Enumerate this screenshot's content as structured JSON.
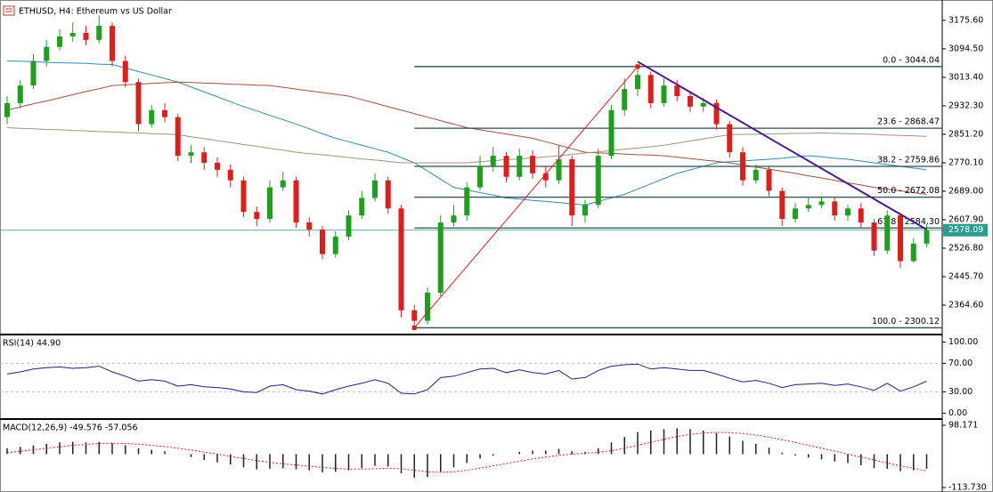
{
  "chart_data": [
    {
      "type": "candlestick",
      "title": "ETHUSD, H4:  Ethereum vs US Dollar",
      "open": [
        2900,
        2940,
        2990,
        3060,
        3100,
        3130,
        3140,
        3120,
        3160,
        3060,
        3000,
        2880,
        2920,
        2900,
        2790,
        2800,
        2770,
        2750,
        2720,
        2630,
        2610,
        2700,
        2720,
        2600,
        2580,
        2510,
        2560,
        2620,
        2670,
        2720,
        2640,
        2350,
        2320,
        2400,
        2600,
        2620,
        2700,
        2760,
        2790,
        2730,
        2790,
        2740,
        2720,
        2780,
        2620,
        2650,
        2790,
        2920,
        2980,
        3020,
        2940,
        2990,
        2960,
        2930,
        2940,
        2880,
        2800,
        2720,
        2750,
        2690,
        2610,
        2640,
        2650,
        2660,
        2620,
        2640,
        2600,
        2520,
        2620,
        2490,
        2540
      ],
      "high": [
        2960,
        3005,
        3080,
        3120,
        3150,
        3170,
        3160,
        3190,
        3170,
        3075,
        3010,
        2935,
        2940,
        2910,
        2820,
        2815,
        2785,
        2765,
        2730,
        2645,
        2720,
        2745,
        2730,
        2615,
        2590,
        2575,
        2635,
        2690,
        2740,
        2730,
        2650,
        2365,
        2415,
        2620,
        2650,
        2715,
        2790,
        2815,
        2800,
        2810,
        2805,
        2760,
        2820,
        2790,
        2665,
        2810,
        2935,
        3010,
        3044.04,
        3030,
        3010,
        3005,
        2975,
        2955,
        2950,
        2890,
        2815,
        2765,
        2760,
        2700,
        2655,
        2670,
        2675,
        2670,
        2650,
        2655,
        2610,
        2635,
        2625,
        2555,
        2595
      ],
      "low": [
        2880,
        2925,
        2980,
        3045,
        3090,
        3115,
        3105,
        3110,
        3045,
        2985,
        2860,
        2870,
        2885,
        2775,
        2770,
        2750,
        2730,
        2700,
        2615,
        2590,
        2600,
        2690,
        2585,
        2560,
        2495,
        2500,
        2550,
        2610,
        2660,
        2625,
        2330,
        2300.12,
        2310,
        2390,
        2590,
        2605,
        2690,
        2745,
        2715,
        2720,
        2725,
        2700,
        2710,
        2590,
        2600,
        2640,
        2780,
        2905,
        2960,
        2925,
        2930,
        2945,
        2915,
        2915,
        2865,
        2785,
        2705,
        2710,
        2675,
        2590,
        2600,
        2630,
        2640,
        2605,
        2605,
        2585,
        2505,
        2510,
        2470,
        2485,
        2530
      ],
      "close": [
        2940,
        2990,
        3060,
        3100,
        3130,
        3140,
        3120,
        3160,
        3060,
        3000,
        2880,
        2920,
        2900,
        2790,
        2800,
        2770,
        2750,
        2720,
        2630,
        2610,
        2700,
        2720,
        2600,
        2580,
        2510,
        2560,
        2620,
        2670,
        2720,
        2640,
        2350,
        2320,
        2400,
        2600,
        2620,
        2700,
        2760,
        2790,
        2730,
        2790,
        2740,
        2720,
        2780,
        2620,
        2650,
        2790,
        2920,
        2980,
        3020,
        2940,
        2990,
        2960,
        2930,
        2940,
        2880,
        2800,
        2720,
        2750,
        2690,
        2610,
        2640,
        2650,
        2660,
        2620,
        2640,
        2600,
        2520,
        2620,
        2490,
        2540,
        2578.09
      ],
      "up_color": "#1f9e1f",
      "down_color": "#d9201c",
      "series": [
        {
          "color": "#2e8bb3",
          "values": [
            3060,
            3059,
            3058,
            3056,
            3055,
            3054,
            3053,
            3051,
            3050,
            3040,
            3030,
            3020,
            3010,
            3000,
            2986,
            2972,
            2958,
            2944,
            2930,
            2918,
            2905,
            2893,
            2880,
            2867,
            2853,
            2840,
            2830,
            2820,
            2810,
            2800,
            2785,
            2770,
            2747,
            2723,
            2700,
            2693,
            2685,
            2678,
            2670,
            2667,
            2663,
            2660,
            2657,
            2653,
            2650,
            2660,
            2670,
            2680,
            2695,
            2710,
            2725,
            2740,
            2750,
            2760,
            2770,
            2773,
            2775,
            2778,
            2780,
            2783,
            2787,
            2790,
            2787,
            2783,
            2780,
            2775,
            2770,
            2765,
            2760,
            2755,
            2750
          ]
        },
        {
          "color": "#a0523c",
          "values": [
            2920,
            2929,
            2938,
            2946,
            2955,
            2964,
            2973,
            2981,
            2990,
            2992,
            2994,
            2996,
            2998,
            3000,
            2999,
            2997,
            2996,
            2994,
            2993,
            2991,
            2990,
            2985,
            2980,
            2975,
            2970,
            2965,
            2960,
            2950,
            2940,
            2930,
            2920,
            2910,
            2900,
            2890,
            2880,
            2870,
            2864,
            2858,
            2852,
            2846,
            2840,
            2830,
            2820,
            2810,
            2800,
            2798,
            2797,
            2795,
            2793,
            2792,
            2790,
            2786,
            2782,
            2778,
            2774,
            2770,
            2764,
            2758,
            2752,
            2746,
            2740,
            2733,
            2727,
            2720,
            2713,
            2707,
            2700,
            2695,
            2690,
            2685,
            2680
          ]
        },
        {
          "color": "#9c967a",
          "values": [
            2870,
            2868,
            2867,
            2865,
            2864,
            2862,
            2861,
            2859,
            2858,
            2856,
            2855,
            2853,
            2852,
            2850,
            2844,
            2839,
            2833,
            2828,
            2822,
            2817,
            2811,
            2806,
            2800,
            2796,
            2793,
            2789,
            2785,
            2781,
            2778,
            2774,
            2770,
            2770,
            2770,
            2770,
            2770,
            2770,
            2773,
            2776,
            2779,
            2781,
            2784,
            2787,
            2790,
            2794,
            2798,
            2801,
            2805,
            2809,
            2812,
            2816,
            2820,
            2826,
            2832,
            2838,
            2844,
            2850,
            2851,
            2851,
            2852,
            2853,
            2854,
            2854,
            2855,
            2854,
            2853,
            2852,
            2851,
            2849,
            2848,
            2847,
            2845
          ]
        }
      ],
      "ylim": [
        2283.5,
        3226
      ],
      "yticks": [
        {
          "value": 3175.6,
          "label": "3175.60"
        },
        {
          "value": 3094.5,
          "label": "3094.50"
        },
        {
          "value": 3013.4,
          "label": "3013.40"
        },
        {
          "value": 2932.3,
          "label": "2932.30"
        },
        {
          "value": 2851.2,
          "label": "2851.20"
        },
        {
          "value": 2770.1,
          "label": "2770.10"
        },
        {
          "value": 2689,
          "label": "2689.00"
        },
        {
          "value": 2607.9,
          "label": "2607.90"
        },
        {
          "value": 2526.8,
          "label": "2526.80"
        },
        {
          "value": 2445.7,
          "label": "2445.70"
        },
        {
          "value": 2364.6,
          "label": "2364.60"
        }
      ],
      "fib_color": "#2f4f4f",
      "fib_start": 31,
      "fib_levels": [
        {
          "value": 3044.04,
          "label": "0.0 - 3044.04"
        },
        {
          "value": 2868.47,
          "label": "23.6 - 2868.47"
        },
        {
          "value": 2759.86,
          "label": "38.2 - 2759.86"
        },
        {
          "value": 2672.08,
          "label": "50.0 - 2672.08"
        },
        {
          "value": 2584.3,
          "label": "61.8 - 2584.30"
        },
        {
          "value": 2300.12,
          "label": "100.0 - 2300.12"
        }
      ],
      "trendlines": [
        {
          "color": "#d9201c",
          "x": [
            31,
            48
          ],
          "y": [
            2300.12,
            3044.04
          ]
        },
        {
          "color": "#4b1a8c",
          "x": [
            48,
            70
          ],
          "y": [
            3058,
            2580
          ]
        }
      ],
      "last_price": 2578.09,
      "last_color": "#2a9d8f"
    },
    {
      "type": "line",
      "title": "RSI(14) 44.90",
      "color": "#1a237e",
      "values": [
        55,
        58,
        62,
        64,
        65,
        63,
        64,
        66,
        58,
        52,
        45,
        47,
        45,
        38,
        40,
        37,
        36,
        34,
        30,
        29,
        38,
        40,
        33,
        31,
        27,
        33,
        38,
        42,
        47,
        42,
        28,
        27,
        33,
        50,
        52,
        57,
        62,
        63,
        57,
        61,
        57,
        55,
        60,
        48,
        50,
        60,
        66,
        68,
        69,
        62,
        64,
        62,
        60,
        60,
        55,
        49,
        44,
        46,
        42,
        36,
        40,
        41,
        42,
        39,
        41,
        37,
        32,
        42,
        31,
        37,
        44.9
      ],
      "ylim": [
        -7,
        108
      ],
      "levels": [
        70,
        30
      ],
      "yticks": [
        {
          "value": 100,
          "label": "100.00"
        },
        {
          "value": 70,
          "label": "70.00"
        },
        {
          "value": 30,
          "label": "30.00"
        },
        {
          "value": 0,
          "label": "0.00"
        }
      ]
    },
    {
      "type": "macd",
      "title": "MACD(12,26,9) -49.576 -57.056",
      "color": "#222222",
      "values": [
        20,
        25,
        30,
        35,
        40,
        42,
        40,
        42,
        38,
        30,
        20,
        15,
        10,
        0,
        -10,
        -20,
        -28,
        -35,
        -45,
        -52,
        -50,
        -48,
        -52,
        -55,
        -62,
        -60,
        -55,
        -48,
        -40,
        -42,
        -65,
        -80,
        -78,
        -60,
        -45,
        -30,
        -15,
        -5,
        0,
        8,
        12,
        12,
        18,
        10,
        8,
        20,
        40,
        58,
        75,
        80,
        85,
        88,
        85,
        80,
        72,
        60,
        45,
        35,
        22,
        5,
        -5,
        -12,
        -18,
        -25,
        -30,
        -38,
        -48,
        -50,
        -58,
        -55,
        -49.576
      ],
      "signal": {
        "color": "#d9201c",
        "values": [
          5,
          10,
          15,
          20,
          25,
          30,
          33,
          36,
          37,
          36,
          34,
          30,
          26,
          20,
          14,
          7,
          0,
          -8,
          -15,
          -22,
          -28,
          -33,
          -37,
          -41,
          -45,
          -49,
          -51,
          -51,
          -50,
          -48,
          -50,
          -55,
          -60,
          -62,
          -60,
          -55,
          -48,
          -40,
          -32,
          -24,
          -16,
          -10,
          -4,
          0,
          3,
          6,
          12,
          20,
          30,
          40,
          50,
          60,
          67,
          72,
          74,
          73,
          70,
          65,
          58,
          49,
          40,
          30,
          20,
          10,
          0,
          -10,
          -20,
          -30,
          -40,
          -48,
          -57.056
        ]
      },
      "ylim": [
        -113.73,
        98.171
      ],
      "yticks": [
        98.171,
        {
          "value": -113.73,
          "label": "-113.730"
        }
      ]
    }
  ]
}
